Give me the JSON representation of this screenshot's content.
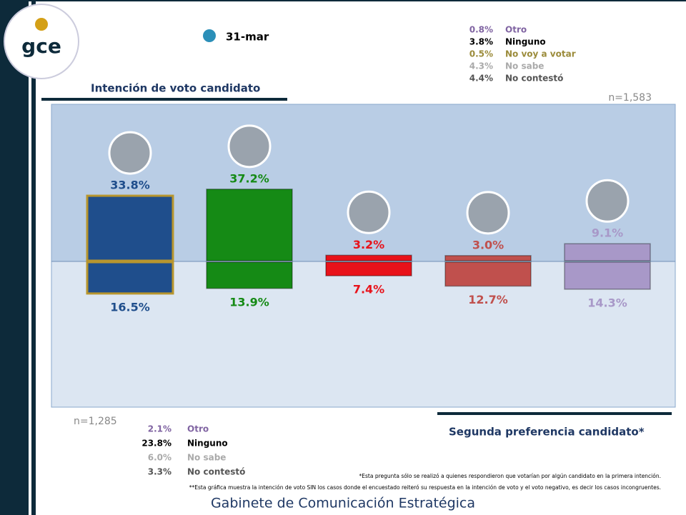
{
  "chart_data": {
    "type": "diverging_bar",
    "date": "31-mar",
    "categories": [
      null,
      null,
      null,
      null,
      null
    ],
    "colors": [
      "#1f4e8c",
      "#158a15",
      "#e8121a",
      "#c0504d",
      "#a898c8"
    ],
    "series": [
      {
        "name": "Intención de voto candidato",
        "values": [
          33.8,
          37.2,
          3.2,
          3.0,
          9.1
        ],
        "value_labels": [
          "33.8%",
          "37.2%",
          "3.2%",
          "3.0%",
          "9.1%"
        ],
        "sample": "n=1,583"
      },
      {
        "name": "Segunda preferencia candidato*",
        "values": [
          16.5,
          13.9,
          7.4,
          12.7,
          14.3
        ],
        "value_labels": [
          "16.5%",
          "13.9%",
          "7.4%",
          "12.7%",
          "14.3%"
        ],
        "sample": "n=1,285"
      }
    ],
    "first_other": [
      {
        "value": "0.8%",
        "label": "Otro",
        "color": "#8064a2"
      },
      {
        "value": "3.8%",
        "label": "Ninguno",
        "color": "#000000"
      },
      {
        "value": "0.5%",
        "label": "No voy a votar",
        "color": "#9b8b3a"
      },
      {
        "value": "4.3%",
        "label": "No sabe",
        "color": "#aaaaaa"
      },
      {
        "value": "4.4%",
        "label": "No contestó",
        "color": "#555555"
      }
    ],
    "second_other": [
      {
        "value": "2.1%",
        "label": "Otro",
        "color": "#8064a2"
      },
      {
        "value": "23.8%",
        "label": "Ninguno",
        "color": "#000000"
      },
      {
        "value": "6.0%",
        "label": "No sabe",
        "color": "#aaaaaa"
      },
      {
        "value": "3.3%",
        "label": "No contestó",
        "color": "#555555"
      }
    ],
    "footnotes": [
      "*Esta pregunta sólo se realizó a quienes respondieron que votarían por algún candidato en la primera intención.",
      "**Esta gráfica muestra la intención de voto SIN los casos donde el encuestado reiteró su respuesta en la intención de voto y el voto negativo, es decir los casos incongruentes."
    ]
  },
  "logo": "gce",
  "footer": "Gabinete de Comunicación Estratégica"
}
